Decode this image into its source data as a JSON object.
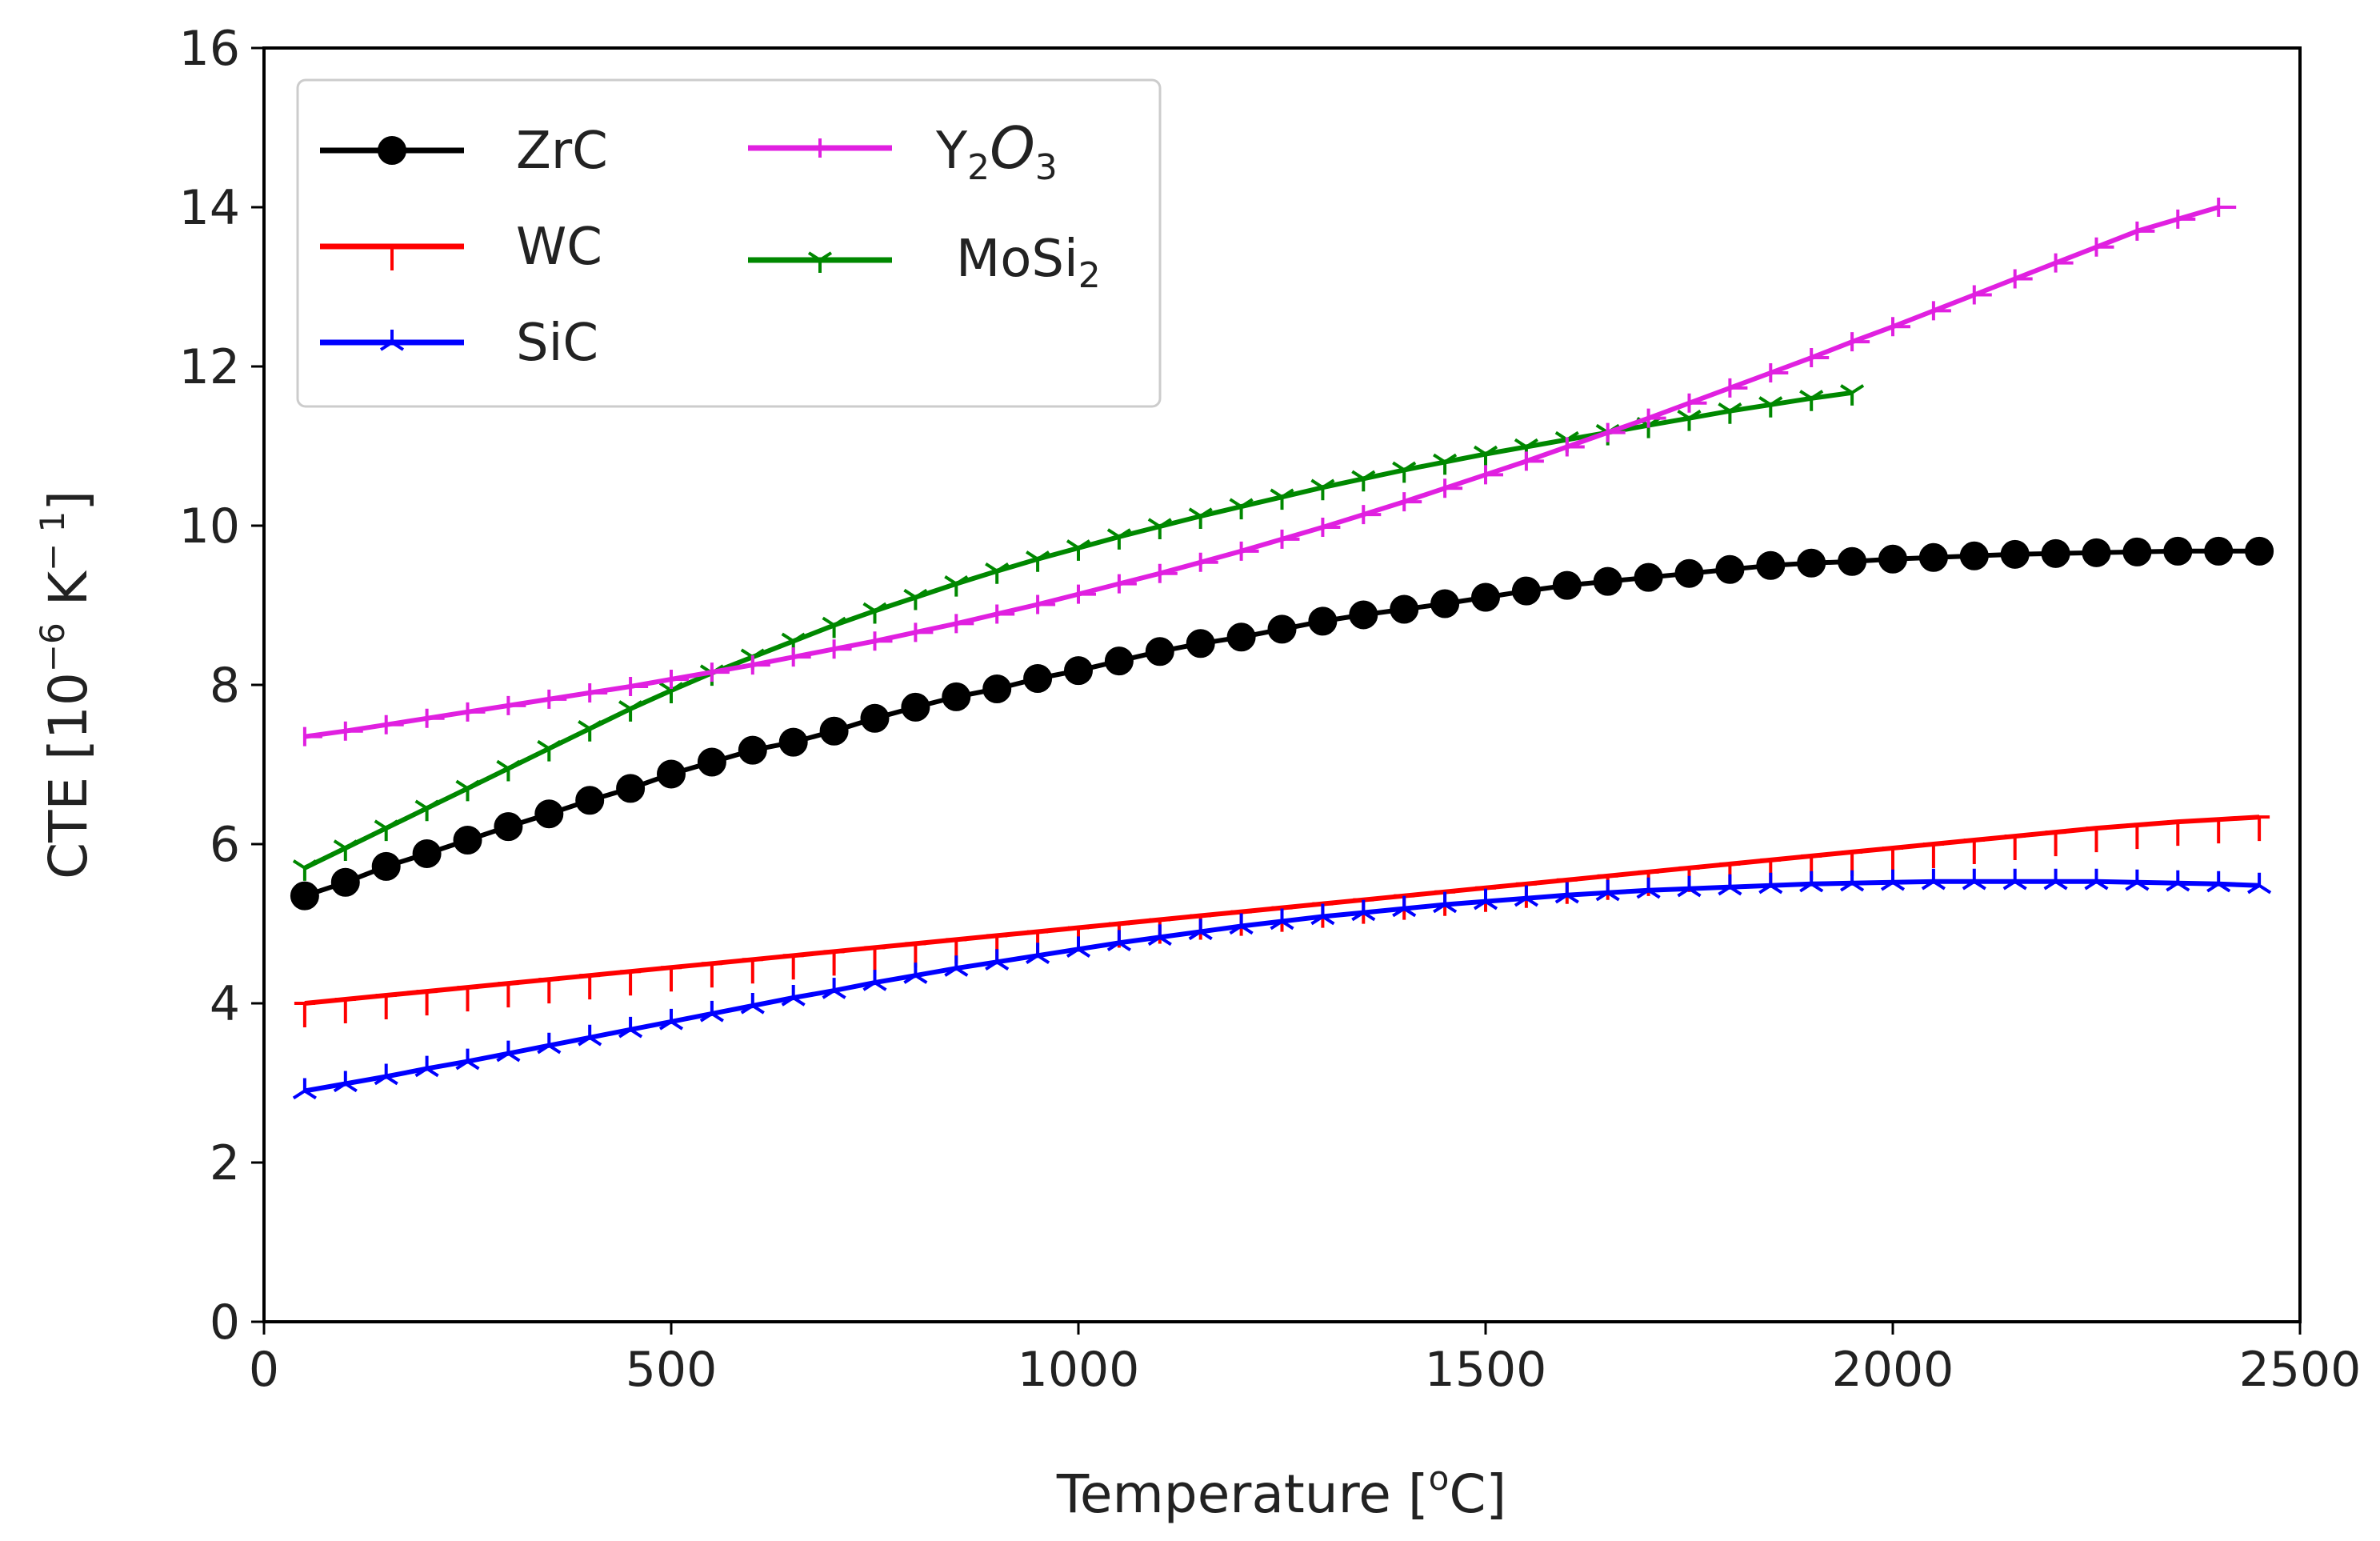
{
  "chart_data": {
    "type": "line",
    "title": "",
    "xlabel": "Temperature [°C]",
    "xlabel_parts": {
      "main": "Temperature [",
      "sup": "o",
      "end": "C]"
    },
    "ylabel": "CTE [10^-6 K^-1]",
    "ylabel_parts": {
      "a": "CTE [10",
      "sup1": "−6",
      "b": " K",
      "sup2": "− 1",
      "c": "]"
    },
    "xlim": [
      0,
      2500
    ],
    "ylim": [
      0,
      16
    ],
    "xticks": [
      0,
      500,
      1000,
      1500,
      2000,
      2500
    ],
    "xtick_labels": [
      "0",
      "500",
      "1000",
      "1500",
      "2000",
      "2500"
    ],
    "yticks": [
      0,
      2,
      4,
      6,
      8,
      10,
      12,
      14,
      16
    ],
    "ytick_labels": [
      "0",
      "2",
      "4",
      "6",
      "8",
      "10",
      "12",
      "14",
      "16"
    ],
    "grid": false,
    "legend_position": "top-left",
    "series": [
      {
        "name": "ZrC",
        "legend_main": "ZrC",
        "color": "#000000",
        "marker": "circle",
        "x": [
          50,
          100,
          150,
          200,
          250,
          300,
          350,
          400,
          450,
          500,
          550,
          600,
          650,
          700,
          750,
          800,
          850,
          900,
          950,
          1000,
          1050,
          1100,
          1150,
          1200,
          1250,
          1300,
          1350,
          1400,
          1450,
          1500,
          1550,
          1600,
          1650,
          1700,
          1750,
          1800,
          1850,
          1900,
          1950,
          2000,
          2050,
          2100,
          2150,
          2200,
          2250,
          2300,
          2350,
          2400,
          2450
        ],
        "y": [
          5.35,
          5.52,
          5.72,
          5.88,
          6.05,
          6.22,
          6.38,
          6.55,
          6.7,
          6.88,
          7.03,
          7.18,
          7.28,
          7.42,
          7.58,
          7.72,
          7.85,
          7.95,
          8.08,
          8.18,
          8.3,
          8.42,
          8.52,
          8.6,
          8.7,
          8.8,
          8.88,
          8.95,
          9.02,
          9.1,
          9.18,
          9.25,
          9.3,
          9.35,
          9.4,
          9.45,
          9.5,
          9.53,
          9.55,
          9.58,
          9.6,
          9.62,
          9.64,
          9.65,
          9.66,
          9.67,
          9.68,
          9.68,
          9.68
        ]
      },
      {
        "name": "WC",
        "legend_main": "WC",
        "color": "#ff0000",
        "marker": "tick-down",
        "x": [
          50,
          100,
          150,
          200,
          250,
          300,
          350,
          400,
          450,
          500,
          550,
          600,
          650,
          700,
          750,
          800,
          850,
          900,
          950,
          1000,
          1050,
          1100,
          1150,
          1200,
          1250,
          1300,
          1350,
          1400,
          1450,
          1500,
          1550,
          1600,
          1650,
          1700,
          1750,
          1800,
          1850,
          1900,
          1950,
          2000,
          2050,
          2100,
          2150,
          2200,
          2250,
          2300,
          2350,
          2400,
          2450
        ],
        "y": [
          4.0,
          4.05,
          4.1,
          4.15,
          4.2,
          4.25,
          4.3,
          4.35,
          4.4,
          4.45,
          4.5,
          4.55,
          4.6,
          4.65,
          4.7,
          4.75,
          4.8,
          4.85,
          4.9,
          4.95,
          5.0,
          5.05,
          5.1,
          5.15,
          5.2,
          5.25,
          5.3,
          5.35,
          5.4,
          5.45,
          5.5,
          5.55,
          5.6,
          5.65,
          5.7,
          5.75,
          5.8,
          5.85,
          5.9,
          5.95,
          6.0,
          6.05,
          6.1,
          6.15,
          6.2,
          6.24,
          6.28,
          6.31,
          6.34
        ]
      },
      {
        "name": "SiC",
        "legend_main": "SiC",
        "color": "#0000ff",
        "marker": "tri-star",
        "x": [
          50,
          100,
          150,
          200,
          250,
          300,
          350,
          400,
          450,
          500,
          550,
          600,
          650,
          700,
          750,
          800,
          850,
          900,
          950,
          1000,
          1050,
          1100,
          1150,
          1200,
          1250,
          1300,
          1350,
          1400,
          1450,
          1500,
          1550,
          1600,
          1650,
          1700,
          1750,
          1800,
          1850,
          1900,
          1950,
          2000,
          2050,
          2100,
          2150,
          2200,
          2250,
          2300,
          2350,
          2400,
          2450
        ],
        "y": [
          2.9,
          2.99,
          3.08,
          3.18,
          3.27,
          3.37,
          3.47,
          3.57,
          3.67,
          3.77,
          3.87,
          3.97,
          4.07,
          4.16,
          4.26,
          4.35,
          4.44,
          4.52,
          4.6,
          4.68,
          4.76,
          4.83,
          4.9,
          4.97,
          5.03,
          5.09,
          5.14,
          5.19,
          5.24,
          5.28,
          5.32,
          5.36,
          5.39,
          5.42,
          5.44,
          5.46,
          5.48,
          5.5,
          5.51,
          5.52,
          5.53,
          5.53,
          5.53,
          5.53,
          5.53,
          5.52,
          5.51,
          5.5,
          5.48
        ]
      },
      {
        "name": "Y2O3",
        "legend_main": "Y",
        "legend_sub1": "2",
        "legend_mid": "O",
        "legend_sub2": "3",
        "color": "#e020e0",
        "marker": "tick-right",
        "x": [
          50,
          100,
          150,
          200,
          250,
          300,
          350,
          400,
          450,
          500,
          550,
          600,
          650,
          700,
          750,
          800,
          850,
          900,
          950,
          1000,
          1050,
          1100,
          1150,
          1200,
          1250,
          1300,
          1350,
          1400,
          1450,
          1500,
          1550,
          1600,
          1650,
          1700,
          1750,
          1800,
          1850,
          1900,
          1950,
          2000,
          2050,
          2100,
          2150,
          2200,
          2250,
          2300,
          2350,
          2400
        ],
        "y": [
          7.35,
          7.42,
          7.5,
          7.58,
          7.66,
          7.74,
          7.82,
          7.9,
          7.98,
          8.07,
          8.16,
          8.25,
          8.35,
          8.45,
          8.55,
          8.66,
          8.77,
          8.89,
          9.01,
          9.14,
          9.27,
          9.4,
          9.54,
          9.68,
          9.83,
          9.98,
          10.14,
          10.3,
          10.47,
          10.64,
          10.81,
          10.99,
          11.17,
          11.35,
          11.54,
          11.73,
          11.92,
          12.11,
          12.31,
          12.5,
          12.7,
          12.9,
          13.1,
          13.3,
          13.5,
          13.7,
          13.85,
          14.0
        ]
      },
      {
        "name": "MoSi2",
        "legend_main": "MoSi",
        "legend_sub1": "2",
        "color": "#008800",
        "marker": "tri-down",
        "x": [
          50,
          100,
          150,
          200,
          250,
          300,
          350,
          400,
          450,
          500,
          550,
          600,
          650,
          700,
          750,
          800,
          850,
          900,
          950,
          1000,
          1050,
          1100,
          1150,
          1200,
          1250,
          1300,
          1350,
          1400,
          1450,
          1500,
          1550,
          1600,
          1650,
          1700,
          1750,
          1800,
          1850,
          1900,
          1950
        ],
        "y": [
          5.7,
          5.95,
          6.2,
          6.45,
          6.7,
          6.95,
          7.2,
          7.45,
          7.7,
          7.93,
          8.15,
          8.35,
          8.55,
          8.75,
          8.93,
          9.1,
          9.27,
          9.43,
          9.58,
          9.72,
          9.86,
          9.99,
          10.12,
          10.24,
          10.36,
          10.48,
          10.59,
          10.7,
          10.8,
          10.9,
          10.99,
          11.08,
          11.17,
          11.26,
          11.35,
          11.44,
          11.52,
          11.6,
          11.67
        ]
      }
    ]
  }
}
